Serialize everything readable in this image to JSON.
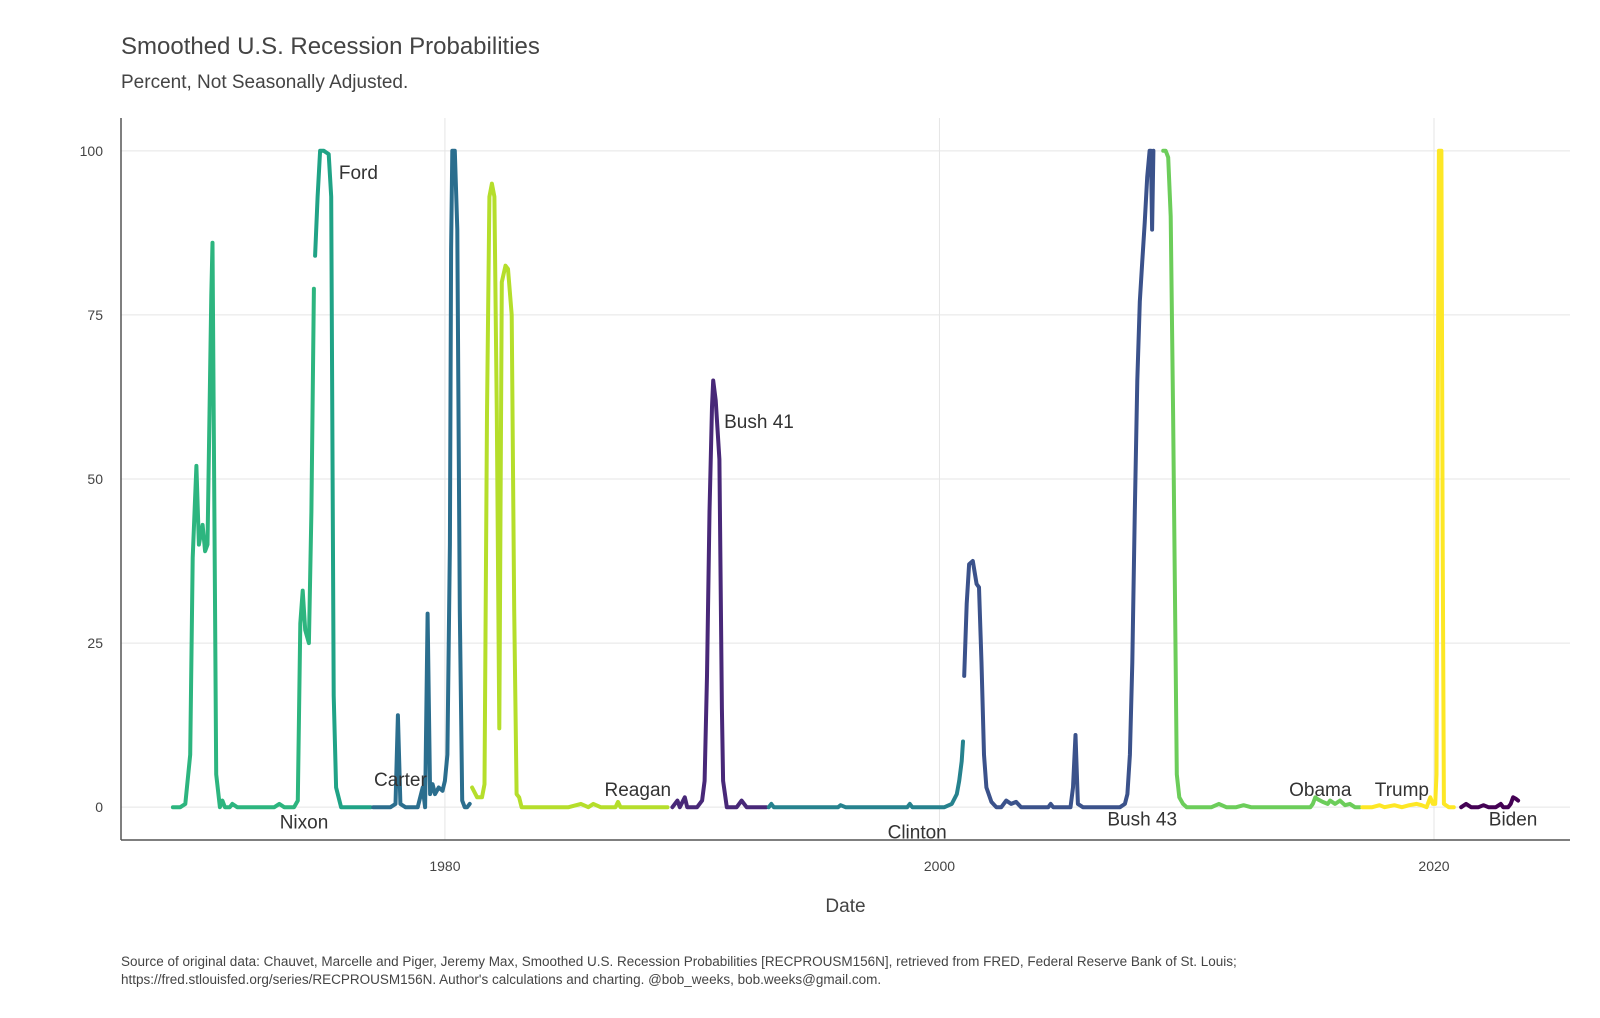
{
  "chart_data": {
    "type": "line",
    "title": "Smoothed U.S. Recession Probabilities",
    "subtitle": "Percent, Not Seasonally Adjusted.",
    "xlabel": "Date",
    "ylabel": "",
    "xlim": [
      1966.9,
      2025.5
    ],
    "ylim": [
      -5,
      105
    ],
    "xticks": [
      1980,
      2000,
      2020
    ],
    "yticks": [
      0,
      25,
      50,
      75,
      100
    ],
    "grid": true,
    "legend": "none",
    "caption_lines": [
      "Source of original data: Chauvet, Marcelle and Piger, Jeremy Max, Smoothed U.S. Recession Probabilities [RECPROUSM156N], retrieved from FRED, Federal Reserve Bank of St. Louis;",
      "https://fred.stlouisfed.org/series/RECPROUSM156N. Author's calculations and charting. @bob_weeks, bob.weeks@gmail.com."
    ],
    "series": [
      {
        "name": "Nixon",
        "color": "#2db57f",
        "label_at": [
          1974.3,
          -2.5
        ],
        "points": [
          [
            1969.0,
            0
          ],
          [
            1969.3,
            0
          ],
          [
            1969.5,
            0.5
          ],
          [
            1969.7,
            8
          ],
          [
            1969.8,
            38
          ],
          [
            1969.95,
            52
          ],
          [
            1970.05,
            40
          ],
          [
            1970.2,
            43
          ],
          [
            1970.3,
            39
          ],
          [
            1970.4,
            40
          ],
          [
            1970.55,
            78
          ],
          [
            1970.6,
            86
          ],
          [
            1970.75,
            5
          ],
          [
            1970.9,
            0
          ],
          [
            1971.0,
            1
          ],
          [
            1971.1,
            0
          ],
          [
            1971.3,
            0
          ],
          [
            1971.4,
            0.5
          ],
          [
            1971.6,
            0
          ],
          [
            1972.0,
            0
          ],
          [
            1972.5,
            0
          ],
          [
            1972.9,
            0
          ],
          [
            1973.1,
            0
          ],
          [
            1973.3,
            0.5
          ],
          [
            1973.5,
            0
          ],
          [
            1973.9,
            0
          ],
          [
            1974.05,
            1
          ],
          [
            1974.15,
            28
          ],
          [
            1974.25,
            33
          ],
          [
            1974.35,
            27
          ],
          [
            1974.5,
            25
          ],
          [
            1974.6,
            45
          ],
          [
            1974.7,
            79
          ]
        ]
      },
      {
        "name": "Ford",
        "color": "#20a386",
        "label_at": [
          1976.5,
          96.5
        ],
        "points": [
          [
            1974.75,
            84
          ],
          [
            1974.85,
            93
          ],
          [
            1974.95,
            100
          ],
          [
            1975.1,
            100
          ],
          [
            1975.3,
            99.5
          ],
          [
            1975.4,
            93
          ],
          [
            1975.5,
            17
          ],
          [
            1975.6,
            3
          ],
          [
            1975.8,
            0
          ],
          [
            1976.0,
            0
          ],
          [
            1976.5,
            0
          ],
          [
            1977.0,
            0
          ]
        ]
      },
      {
        "name": "Carter",
        "color": "#2b6e8e",
        "label_at": [
          1978.2,
          4
        ],
        "points": [
          [
            1977.1,
            0
          ],
          [
            1977.5,
            0
          ],
          [
            1977.8,
            0
          ],
          [
            1978.0,
            0.5
          ],
          [
            1978.1,
            14
          ],
          [
            1978.2,
            0.5
          ],
          [
            1978.4,
            0
          ],
          [
            1978.7,
            0
          ],
          [
            1978.9,
            0
          ],
          [
            1979.1,
            3
          ],
          [
            1979.2,
            0
          ],
          [
            1979.3,
            29.5
          ],
          [
            1979.4,
            2
          ],
          [
            1979.5,
            3.5
          ],
          [
            1979.6,
            2
          ],
          [
            1979.75,
            3
          ],
          [
            1979.9,
            2.5
          ],
          [
            1980.0,
            4
          ],
          [
            1980.1,
            8
          ],
          [
            1980.2,
            40
          ],
          [
            1980.25,
            85
          ],
          [
            1980.3,
            100
          ],
          [
            1980.4,
            100
          ],
          [
            1980.5,
            88
          ],
          [
            1980.6,
            30
          ],
          [
            1980.7,
            1
          ],
          [
            1980.8,
            0
          ],
          [
            1980.9,
            0
          ],
          [
            1981.0,
            0.5
          ]
        ]
      },
      {
        "name": "Reagan",
        "color": "#b5de2b",
        "label_at": [
          1987.8,
          2.5
        ],
        "points": [
          [
            1981.1,
            3
          ],
          [
            1981.3,
            1.5
          ],
          [
            1981.5,
            1.5
          ],
          [
            1981.6,
            3.5
          ],
          [
            1981.7,
            60
          ],
          [
            1981.8,
            93
          ],
          [
            1981.9,
            95
          ],
          [
            1982.0,
            93
          ],
          [
            1982.1,
            60
          ],
          [
            1982.2,
            12
          ],
          [
            1982.3,
            80
          ],
          [
            1982.45,
            82.5
          ],
          [
            1982.55,
            82
          ],
          [
            1982.7,
            75
          ],
          [
            1982.8,
            30
          ],
          [
            1982.9,
            2
          ],
          [
            1983.0,
            1.5
          ],
          [
            1983.1,
            0
          ],
          [
            1983.5,
            0
          ],
          [
            1984.0,
            0
          ],
          [
            1984.5,
            0
          ],
          [
            1985.0,
            0
          ],
          [
            1985.5,
            0.5
          ],
          [
            1985.8,
            0
          ],
          [
            1986.0,
            0.5
          ],
          [
            1986.3,
            0
          ],
          [
            1986.6,
            0
          ],
          [
            1986.9,
            0
          ],
          [
            1987.0,
            0.8
          ],
          [
            1987.1,
            0
          ],
          [
            1987.5,
            0
          ],
          [
            1988.0,
            0
          ],
          [
            1988.5,
            0
          ],
          [
            1989.0,
            0
          ]
        ]
      },
      {
        "name": "Bush 41",
        "color": "#482878",
        "label_at": [
          1992.7,
          58.5
        ],
        "points": [
          [
            1989.2,
            0
          ],
          [
            1989.4,
            1
          ],
          [
            1989.5,
            0
          ],
          [
            1989.7,
            1.5
          ],
          [
            1989.8,
            0
          ],
          [
            1990.0,
            0
          ],
          [
            1990.2,
            0
          ],
          [
            1990.4,
            1
          ],
          [
            1990.5,
            4
          ],
          [
            1990.6,
            20
          ],
          [
            1990.7,
            45
          ],
          [
            1990.8,
            61
          ],
          [
            1990.85,
            65
          ],
          [
            1990.95,
            62
          ],
          [
            1991.1,
            53
          ],
          [
            1991.2,
            15
          ],
          [
            1991.25,
            4
          ],
          [
            1991.4,
            0
          ],
          [
            1991.6,
            0
          ],
          [
            1991.8,
            0
          ],
          [
            1992.0,
            1
          ],
          [
            1992.2,
            0
          ],
          [
            1992.5,
            0
          ],
          [
            1992.8,
            0
          ],
          [
            1993.0,
            0
          ]
        ]
      },
      {
        "name": "Clinton",
        "color": "#26828e",
        "label_at": [
          1999.1,
          -4
        ],
        "points": [
          [
            1993.1,
            0
          ],
          [
            1993.2,
            0.5
          ],
          [
            1993.3,
            0
          ],
          [
            1993.5,
            0
          ],
          [
            1994.0,
            0
          ],
          [
            1994.5,
            0
          ],
          [
            1995.0,
            0
          ],
          [
            1995.3,
            0
          ],
          [
            1995.6,
            0
          ],
          [
            1995.9,
            0
          ],
          [
            1996.0,
            0.3
          ],
          [
            1996.2,
            0
          ],
          [
            1996.5,
            0
          ],
          [
            1997.0,
            0
          ],
          [
            1997.5,
            0
          ],
          [
            1998.0,
            0
          ],
          [
            1998.5,
            0
          ],
          [
            1998.7,
            0
          ],
          [
            1998.8,
            0.5
          ],
          [
            1998.9,
            0
          ],
          [
            1999.2,
            0
          ],
          [
            1999.6,
            0
          ],
          [
            1999.8,
            0
          ],
          [
            2000.0,
            0
          ],
          [
            2000.2,
            0
          ],
          [
            2000.5,
            0.5
          ],
          [
            2000.7,
            2
          ],
          [
            2000.8,
            4
          ],
          [
            2000.9,
            7
          ],
          [
            2000.95,
            10
          ]
        ]
      },
      {
        "name": "Bush 43",
        "color": "#3b528b",
        "label_at": [
          2008.2,
          -2
        ],
        "points": [
          [
            2001.0,
            20
          ],
          [
            2001.1,
            31
          ],
          [
            2001.2,
            37
          ],
          [
            2001.35,
            37.5
          ],
          [
            2001.5,
            34
          ],
          [
            2001.6,
            33.5
          ],
          [
            2001.7,
            22
          ],
          [
            2001.8,
            8
          ],
          [
            2001.9,
            3
          ],
          [
            2002.1,
            0.8
          ],
          [
            2002.3,
            0
          ],
          [
            2002.5,
            0
          ],
          [
            2002.7,
            1
          ],
          [
            2002.9,
            0.5
          ],
          [
            2003.1,
            0.8
          ],
          [
            2003.3,
            0
          ],
          [
            2003.6,
            0
          ],
          [
            2004.0,
            0
          ],
          [
            2004.4,
            0
          ],
          [
            2004.5,
            0.5
          ],
          [
            2004.6,
            0
          ],
          [
            2005.0,
            0
          ],
          [
            2005.3,
            0
          ],
          [
            2005.4,
            3
          ],
          [
            2005.5,
            11
          ],
          [
            2005.6,
            0.5
          ],
          [
            2005.8,
            0
          ],
          [
            2006.0,
            0
          ],
          [
            2006.5,
            0
          ],
          [
            2007.0,
            0
          ],
          [
            2007.3,
            0
          ],
          [
            2007.5,
            0.5
          ],
          [
            2007.6,
            2
          ],
          [
            2007.7,
            8
          ],
          [
            2007.8,
            22
          ],
          [
            2007.9,
            45
          ],
          [
            2008.0,
            65
          ],
          [
            2008.1,
            77
          ],
          [
            2008.2,
            83
          ],
          [
            2008.3,
            89
          ],
          [
            2008.4,
            96
          ],
          [
            2008.45,
            98
          ],
          [
            2008.5,
            100
          ],
          [
            2008.55,
            100
          ],
          [
            2008.6,
            88
          ],
          [
            2008.65,
            100
          ]
        ]
      },
      {
        "name": "Obama",
        "color": "#6ccd5a",
        "label_at": [
          2015.4,
          2.5
        ],
        "points": [
          [
            2009.05,
            100
          ],
          [
            2009.15,
            100
          ],
          [
            2009.25,
            99
          ],
          [
            2009.35,
            90
          ],
          [
            2009.45,
            60
          ],
          [
            2009.6,
            5
          ],
          [
            2009.7,
            1.5
          ],
          [
            2009.85,
            0.5
          ],
          [
            2010.0,
            0
          ],
          [
            2010.5,
            0
          ],
          [
            2011.0,
            0
          ],
          [
            2011.3,
            0.5
          ],
          [
            2011.6,
            0
          ],
          [
            2012.0,
            0
          ],
          [
            2012.3,
            0.3
          ],
          [
            2012.6,
            0
          ],
          [
            2013.0,
            0
          ],
          [
            2013.5,
            0
          ],
          [
            2014.0,
            0
          ],
          [
            2014.4,
            0
          ],
          [
            2014.7,
            0
          ],
          [
            2015.0,
            0
          ],
          [
            2015.1,
            0.5
          ],
          [
            2015.2,
            1.5
          ],
          [
            2015.3,
            1.2
          ],
          [
            2015.5,
            0.8
          ],
          [
            2015.7,
            0.5
          ],
          [
            2015.8,
            1
          ],
          [
            2016.0,
            0.5
          ],
          [
            2016.2,
            1
          ],
          [
            2016.4,
            0.3
          ],
          [
            2016.6,
            0.5
          ],
          [
            2016.8,
            0
          ],
          [
            2017.0,
            0
          ]
        ]
      },
      {
        "name": "Trump",
        "color": "#fde725",
        "label_at": [
          2018.7,
          2.5
        ],
        "points": [
          [
            2017.1,
            0
          ],
          [
            2017.3,
            0
          ],
          [
            2017.5,
            0
          ],
          [
            2017.8,
            0.3
          ],
          [
            2018.0,
            0
          ],
          [
            2018.4,
            0.3
          ],
          [
            2018.7,
            0
          ],
          [
            2019.0,
            0.3
          ],
          [
            2019.3,
            0.5
          ],
          [
            2019.5,
            0.3
          ],
          [
            2019.7,
            0
          ],
          [
            2019.85,
            1.5
          ],
          [
            2019.95,
            0.5
          ],
          [
            2020.05,
            0.5
          ],
          [
            2020.1,
            5
          ],
          [
            2020.15,
            60
          ],
          [
            2020.2,
            100
          ],
          [
            2020.3,
            100
          ],
          [
            2020.35,
            40
          ],
          [
            2020.4,
            0.5
          ],
          [
            2020.6,
            0
          ],
          [
            2020.8,
            0
          ]
        ]
      },
      {
        "name": "Biden",
        "color": "#440154",
        "label_at": [
          2023.2,
          -2
        ],
        "points": [
          [
            2021.1,
            0
          ],
          [
            2021.3,
            0.5
          ],
          [
            2021.5,
            0
          ],
          [
            2021.8,
            0
          ],
          [
            2022.0,
            0.3
          ],
          [
            2022.2,
            0
          ],
          [
            2022.5,
            0
          ],
          [
            2022.7,
            0.5
          ],
          [
            2022.8,
            0
          ],
          [
            2023.0,
            0
          ],
          [
            2023.1,
            0.5
          ],
          [
            2023.2,
            1.5
          ],
          [
            2023.3,
            1.3
          ],
          [
            2023.4,
            1
          ]
        ]
      }
    ]
  }
}
